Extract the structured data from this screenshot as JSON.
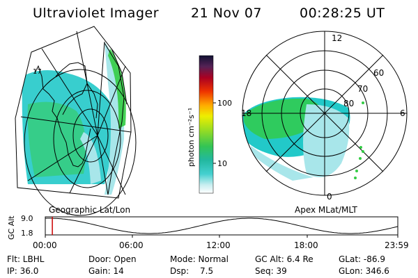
{
  "header": {
    "title": "Ultraviolet Imager",
    "date": "21 Nov 07",
    "time": "00:28:25 UT"
  },
  "left_map": {
    "caption": "Geographic Lat/Lon",
    "overlay_label": "17"
  },
  "right_map": {
    "caption": "Apex MLat/MLT",
    "mlt_labels": [
      "12",
      "18",
      "6",
      "0"
    ],
    "lat_labels": [
      "60",
      "70",
      "80"
    ]
  },
  "colorbar": {
    "unit_label": "photon cm⁻²s⁻¹",
    "tick_labels": [
      "100",
      "10"
    ]
  },
  "orbit_plot": {
    "ylabel": "GC Alt",
    "y_ticks": [
      "9.0",
      "1.8"
    ],
    "x_ticks": [
      "00:00",
      "06:00",
      "12:00",
      "18:00",
      "23:59"
    ],
    "current_time_fraction": 0.02
  },
  "footer": {
    "filter": "Flt: LBHL",
    "ip": "IP: 36.0",
    "door": "Door: Open",
    "gain": "Gain: 14",
    "mode": "Mode: Normal",
    "dsp_label": "Dsp:",
    "dsp_value": "7.5",
    "gc_alt": "GC Alt: 6.4 Re",
    "seq": "Seq: 39",
    "glat": "GLat: -86.9",
    "glon": "GLon: 346.6"
  },
  "colors": {
    "teal": "#22c9c9",
    "light_teal": "#a8e6ea",
    "green": "#33cc44",
    "red": "#cc0000"
  }
}
